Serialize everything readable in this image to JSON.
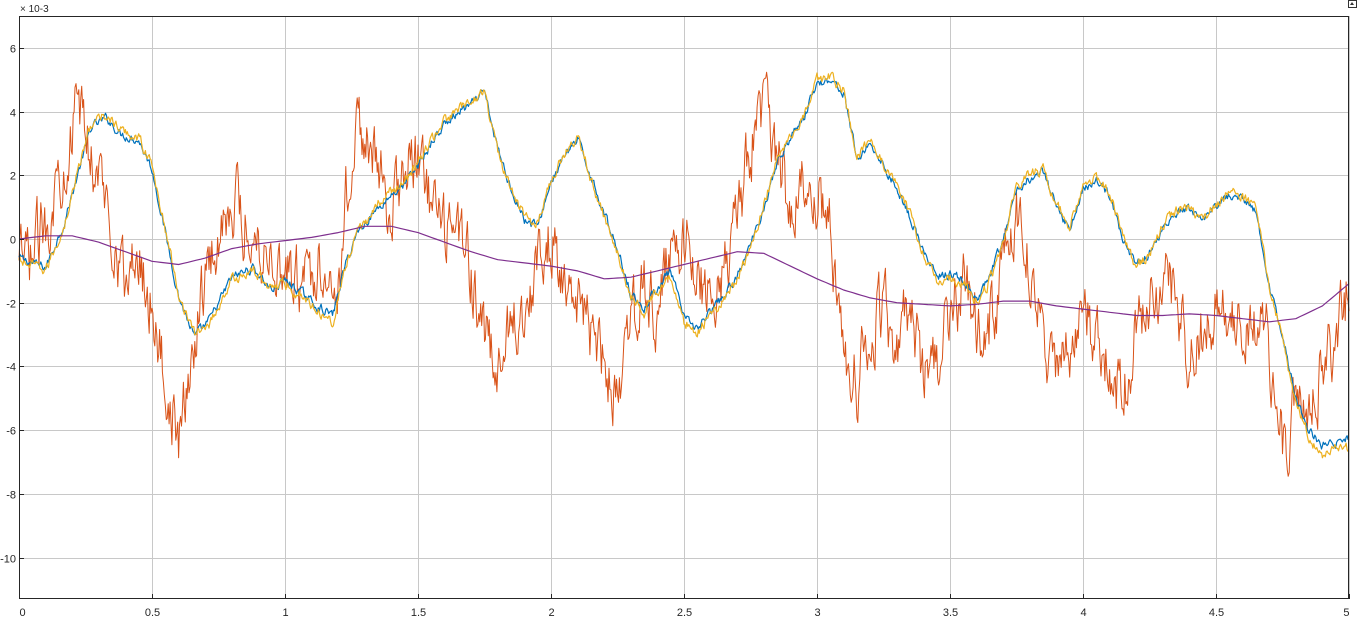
{
  "chart_data": {
    "type": "line",
    "title": "",
    "xlabel": "",
    "ylabel": "",
    "y_exponent_label": "× 10-3",
    "xlim": [
      0,
      5
    ],
    "ylim": [
      -11.3,
      7.0
    ],
    "grid": true,
    "legend": "none",
    "x_ticks": [
      0,
      0.5,
      1,
      1.5,
      2,
      2.5,
      3,
      3.5,
      4,
      4.5,
      5
    ],
    "x_tick_labels": [
      "0",
      "0.5",
      "1",
      "1.5",
      "2",
      "2.5",
      "3",
      "3.5",
      "4",
      "4.5",
      "5"
    ],
    "y_ticks": [
      -10,
      -8,
      -6,
      -4,
      -2,
      0,
      2,
      4,
      6
    ],
    "y_tick_labels": [
      "-10",
      "-8",
      "-6",
      "-4",
      "-2",
      "0",
      "2",
      "4",
      "6"
    ],
    "series": [
      {
        "color": "#0072BD",
        "noise": 0.12,
        "x": [
          0,
          0.1,
          0.17,
          0.22,
          0.27,
          0.33,
          0.38,
          0.45,
          0.5,
          0.55,
          0.6,
          0.66,
          0.72,
          0.8,
          0.88,
          0.95,
          1.0,
          1.05,
          1.12,
          1.18,
          1.22,
          1.27,
          1.33,
          1.4,
          1.45,
          1.5,
          1.55,
          1.6,
          1.66,
          1.7,
          1.75,
          1.8,
          1.85,
          1.9,
          1.95,
          2.0,
          2.05,
          2.1,
          2.15,
          2.2,
          2.25,
          2.3,
          2.35,
          2.4,
          2.45,
          2.5,
          2.55,
          2.6,
          2.65,
          2.7,
          2.75,
          2.8,
          2.85,
          2.9,
          2.95,
          3.0,
          3.05,
          3.1,
          3.15,
          3.2,
          3.25,
          3.3,
          3.35,
          3.4,
          3.45,
          3.5,
          3.55,
          3.6,
          3.65,
          3.7,
          3.75,
          3.8,
          3.85,
          3.9,
          3.95,
          4.0,
          4.05,
          4.1,
          4.15,
          4.2,
          4.25,
          4.3,
          4.35,
          4.4,
          4.45,
          4.5,
          4.55,
          4.6,
          4.65,
          4.7,
          4.75,
          4.8,
          4.85,
          4.9,
          4.95,
          5.0
        ],
        "y": [
          -0.6,
          -0.9,
          0.5,
          2.0,
          3.5,
          3.8,
          3.3,
          3.1,
          2.2,
          0.2,
          -1.8,
          -3.1,
          -2.5,
          -1.2,
          -0.9,
          -1.6,
          -1.3,
          -1.6,
          -2.1,
          -2.4,
          -1.0,
          0.2,
          0.8,
          1.4,
          1.7,
          2.3,
          3.0,
          3.6,
          4.0,
          4.2,
          4.6,
          2.8,
          1.6,
          0.6,
          0.4,
          1.8,
          2.6,
          3.1,
          2.0,
          0.8,
          -0.3,
          -1.7,
          -2.2,
          -1.5,
          -1.0,
          -2.5,
          -2.8,
          -2.3,
          -1.8,
          -1.2,
          -0.2,
          1.0,
          2.4,
          3.2,
          3.8,
          4.9,
          5.0,
          4.6,
          2.5,
          3.0,
          2.3,
          1.6,
          0.7,
          -0.4,
          -1.2,
          -1.1,
          -1.3,
          -2.0,
          -1.2,
          0.0,
          1.5,
          1.9,
          2.1,
          1.0,
          0.3,
          1.6,
          1.8,
          1.4,
          0.0,
          -0.8,
          -0.4,
          0.3,
          0.8,
          0.9,
          0.5,
          1.0,
          1.4,
          1.2,
          0.9,
          -1.5,
          -3.0,
          -5.0,
          -6.0,
          -6.5,
          -6.4,
          -6.3
        ]
      },
      {
        "color": "#EDB120",
        "noise": 0.14,
        "x": [
          0,
          0.1,
          0.17,
          0.22,
          0.27,
          0.33,
          0.38,
          0.45,
          0.5,
          0.55,
          0.6,
          0.66,
          0.72,
          0.8,
          0.88,
          0.95,
          1.0,
          1.05,
          1.12,
          1.18,
          1.22,
          1.27,
          1.33,
          1.4,
          1.45,
          1.5,
          1.55,
          1.6,
          1.66,
          1.7,
          1.75,
          1.8,
          1.85,
          1.9,
          1.95,
          2.0,
          2.05,
          2.1,
          2.15,
          2.2,
          2.25,
          2.3,
          2.35,
          2.4,
          2.45,
          2.5,
          2.55,
          2.6,
          2.65,
          2.7,
          2.75,
          2.8,
          2.85,
          2.9,
          2.95,
          3.0,
          3.05,
          3.1,
          3.15,
          3.2,
          3.25,
          3.3,
          3.35,
          3.4,
          3.45,
          3.5,
          3.55,
          3.6,
          3.65,
          3.7,
          3.75,
          3.8,
          3.85,
          3.9,
          3.95,
          4.0,
          4.05,
          4.1,
          4.15,
          4.2,
          4.25,
          4.3,
          4.35,
          4.4,
          4.45,
          4.5,
          4.55,
          4.6,
          4.65,
          4.7,
          4.75,
          4.8,
          4.85,
          4.9,
          4.95,
          5.0
        ],
        "y": [
          -0.7,
          -1.0,
          0.4,
          2.1,
          3.6,
          3.9,
          3.4,
          3.2,
          2.3,
          0.3,
          -1.7,
          -3.0,
          -2.6,
          -1.3,
          -1.0,
          -1.5,
          -1.4,
          -1.7,
          -2.2,
          -2.6,
          -1.1,
          0.1,
          0.9,
          1.5,
          1.8,
          2.4,
          3.1,
          3.7,
          4.1,
          4.3,
          4.7,
          2.7,
          1.5,
          0.7,
          0.5,
          1.9,
          2.7,
          3.2,
          1.9,
          0.7,
          -0.4,
          -1.8,
          -2.3,
          -1.6,
          -1.1,
          -2.6,
          -2.9,
          -2.4,
          -1.9,
          -1.3,
          -0.3,
          1.1,
          2.5,
          3.3,
          3.9,
          5.0,
          5.1,
          4.7,
          2.6,
          3.1,
          2.4,
          1.7,
          0.8,
          -0.5,
          -1.3,
          -1.2,
          -1.4,
          -2.1,
          -1.3,
          -0.1,
          1.6,
          2.0,
          2.2,
          1.1,
          0.4,
          1.7,
          1.9,
          1.5,
          0.1,
          -0.9,
          -0.5,
          0.4,
          0.9,
          1.0,
          0.6,
          1.1,
          1.5,
          1.3,
          1.0,
          -1.4,
          -3.1,
          -5.2,
          -6.2,
          -6.8,
          -6.5,
          -6.6
        ]
      },
      {
        "color": "#D95319",
        "noise": 0.9,
        "x": [
          0,
          0.05,
          0.1,
          0.15,
          0.2,
          0.23,
          0.26,
          0.3,
          0.35,
          0.4,
          0.45,
          0.5,
          0.55,
          0.58,
          0.6,
          0.63,
          0.66,
          0.7,
          0.75,
          0.8,
          0.85,
          0.9,
          0.95,
          1.0,
          1.05,
          1.1,
          1.15,
          1.2,
          1.25,
          1.3,
          1.35,
          1.4,
          1.45,
          1.5,
          1.55,
          1.6,
          1.65,
          1.7,
          1.75,
          1.8,
          1.85,
          1.9,
          1.95,
          2.0,
          2.05,
          2.1,
          2.15,
          2.2,
          2.25,
          2.3,
          2.35,
          2.4,
          2.45,
          2.5,
          2.55,
          2.6,
          2.65,
          2.7,
          2.75,
          2.8,
          2.85,
          2.9,
          2.95,
          3.0,
          3.05,
          3.1,
          3.15,
          3.2,
          3.25,
          3.3,
          3.35,
          3.4,
          3.45,
          3.5,
          3.55,
          3.6,
          3.65,
          3.7,
          3.75,
          3.8,
          3.85,
          3.9,
          3.95,
          4.0,
          4.05,
          4.1,
          4.15,
          4.2,
          4.25,
          4.3,
          4.35,
          4.4,
          4.45,
          4.5,
          4.55,
          4.6,
          4.65,
          4.7,
          4.75,
          4.8,
          4.85,
          4.9,
          4.95,
          5.0
        ],
        "y": [
          -1.0,
          -0.5,
          0.5,
          2.0,
          3.5,
          4.0,
          3.0,
          2.0,
          0.5,
          -1.5,
          -0.5,
          -2.0,
          -4.5,
          -5.5,
          -6.5,
          -5.0,
          -3.0,
          -1.0,
          0.0,
          1.5,
          0.5,
          0.0,
          -0.5,
          -1.0,
          -1.5,
          -1.0,
          -0.5,
          -1.5,
          3.0,
          3.5,
          2.0,
          1.0,
          2.0,
          2.5,
          1.0,
          0.0,
          0.5,
          -1.0,
          -3.0,
          -4.5,
          -2.5,
          -2.0,
          -1.0,
          0.0,
          -1.0,
          -2.5,
          -3.0,
          -4.0,
          -5.0,
          -3.0,
          -1.5,
          -2.5,
          -0.5,
          0.0,
          -1.0,
          -2.0,
          -1.0,
          0.5,
          3.0,
          4.0,
          2.5,
          1.0,
          1.5,
          1.5,
          0.5,
          -3.5,
          -4.5,
          -3.0,
          -2.0,
          -3.5,
          -2.0,
          -4.5,
          -4.0,
          -2.5,
          -1.5,
          -3.0,
          -2.5,
          -1.0,
          0.5,
          -1.0,
          -3.0,
          -4.0,
          -3.5,
          -2.5,
          -3.0,
          -4.0,
          -5.0,
          -3.0,
          -2.0,
          -1.0,
          -2.0,
          -3.5,
          -3.0,
          -2.0,
          -2.5,
          -3.0,
          -2.5,
          -3.5,
          -6.5,
          -5.5,
          -6.0,
          -4.0,
          -3.0,
          -1.5
        ]
      },
      {
        "color": "#7E2F8E",
        "noise": 0,
        "x": [
          0,
          0.1,
          0.2,
          0.3,
          0.4,
          0.5,
          0.6,
          0.7,
          0.8,
          0.9,
          1.0,
          1.1,
          1.2,
          1.3,
          1.4,
          1.5,
          1.6,
          1.7,
          1.8,
          1.9,
          2.0,
          2.1,
          2.2,
          2.3,
          2.4,
          2.5,
          2.6,
          2.7,
          2.8,
          2.9,
          3.0,
          3.1,
          3.2,
          3.3,
          3.4,
          3.5,
          3.6,
          3.7,
          3.8,
          3.9,
          4.0,
          4.1,
          4.2,
          4.3,
          4.4,
          4.5,
          4.6,
          4.7,
          4.8,
          4.9,
          5.0
        ],
        "y": [
          0.0,
          0.1,
          0.1,
          -0.1,
          -0.4,
          -0.7,
          -0.8,
          -0.6,
          -0.3,
          -0.15,
          -0.05,
          0.05,
          0.2,
          0.4,
          0.4,
          0.2,
          -0.1,
          -0.4,
          -0.65,
          -0.75,
          -0.85,
          -1.0,
          -1.25,
          -1.2,
          -1.0,
          -0.8,
          -0.6,
          -0.4,
          -0.45,
          -0.85,
          -1.25,
          -1.6,
          -1.85,
          -2.0,
          -2.05,
          -2.1,
          -2.05,
          -1.95,
          -1.95,
          -2.1,
          -2.2,
          -2.3,
          -2.4,
          -2.4,
          -2.35,
          -2.4,
          -2.5,
          -2.6,
          -2.5,
          -2.1,
          -1.4
        ]
      }
    ]
  }
}
